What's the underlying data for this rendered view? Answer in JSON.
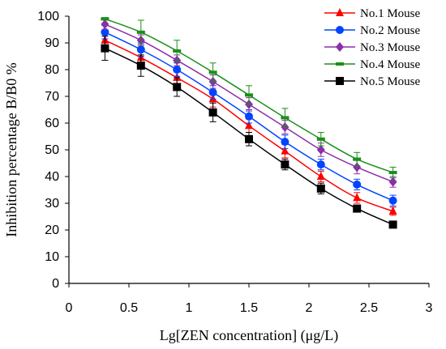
{
  "chart_data": {
    "type": "line",
    "title": "",
    "xlabel": "Lg[ZEN concentration] (μg/L)",
    "ylabel": "Inhibition percentage B/B0 %",
    "xlim": [
      0,
      3
    ],
    "ylim": [
      0,
      100
    ],
    "x_ticks": [
      "0",
      "0.5",
      "1",
      "1.5",
      "2",
      "2.5",
      "3"
    ],
    "y_ticks": [
      "0",
      "10",
      "20",
      "30",
      "40",
      "50",
      "60",
      "70",
      "80",
      "90",
      "100"
    ],
    "x": [
      0.3,
      0.6,
      0.9,
      1.2,
      1.5,
      1.8,
      2.1,
      2.4,
      2.7
    ],
    "grid": false,
    "legend_position": "top-right",
    "series": [
      {
        "name": "No.1 Mouse",
        "color": "#ff0000",
        "marker": "triangle",
        "values": [
          91,
          84.5,
          77,
          69,
          59,
          49.5,
          40,
          32,
          27
        ],
        "errors": [
          3,
          3,
          2.5,
          3,
          2.5,
          2.5,
          2,
          2,
          1.5
        ]
      },
      {
        "name": "No.2 Mouse",
        "color": "#0044ff",
        "marker": "circle",
        "values": [
          94,
          87.5,
          80,
          71.5,
          62.5,
          53,
          44.5,
          37,
          31
        ],
        "errors": [
          2.5,
          2.5,
          2.5,
          2.5,
          2.5,
          2.5,
          2,
          2,
          2
        ]
      },
      {
        "name": "No.3 Mouse",
        "color": "#8b2fa8",
        "marker": "diamond",
        "values": [
          97,
          91,
          83.5,
          75.5,
          67,
          58.5,
          50,
          43.5,
          38
        ],
        "errors": [
          2,
          2,
          2,
          2.5,
          2.5,
          2.5,
          2.5,
          2.5,
          2
        ]
      },
      {
        "name": "No.4 Mouse",
        "color": "#1a8f1a",
        "marker": "dash",
        "values": [
          99,
          94,
          87,
          79,
          70.5,
          62,
          54,
          46.5,
          41.5
        ],
        "errors": [
          0.5,
          4.5,
          4,
          3.5,
          3.5,
          3.5,
          2.5,
          2.5,
          2
        ]
      },
      {
        "name": "No.5 Mouse",
        "color": "#000000",
        "marker": "square",
        "values": [
          88,
          81.5,
          73.5,
          64,
          54,
          44.5,
          35.5,
          28,
          22
        ],
        "errors": [
          4.5,
          4,
          3.5,
          3.5,
          2.5,
          2,
          2,
          1,
          1
        ]
      }
    ]
  }
}
